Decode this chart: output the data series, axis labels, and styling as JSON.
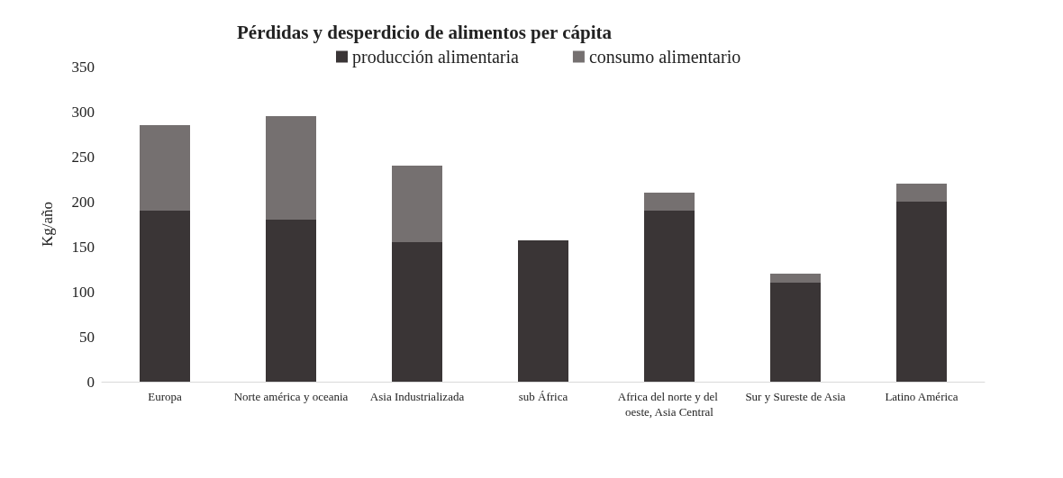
{
  "chart_data": {
    "type": "bar",
    "title": "Pérdidas y desperdicio de alimentos per cápita",
    "ylabel": "Kg/año",
    "categories": [
      "Europa",
      "Norte américa y oceania",
      "Asia Industrializada",
      "sub África",
      "Africa del norte y del oeste, Asia Central",
      "Sur y Sureste de Asia",
      "Latino América"
    ],
    "series": [
      {
        "name": "producción alimentaria",
        "color": "#3a3536",
        "values": [
          190,
          180,
          155,
          157,
          190,
          110,
          200
        ]
      },
      {
        "name": "consumo alimentario",
        "color": "#757070",
        "values": [
          95,
          115,
          85,
          0,
          20,
          10,
          20
        ]
      }
    ],
    "stacked": true,
    "ylim": [
      0,
      350
    ],
    "yticks": [
      0,
      50,
      100,
      150,
      200,
      250,
      300,
      350
    ],
    "grid": false,
    "legend": "top right"
  }
}
